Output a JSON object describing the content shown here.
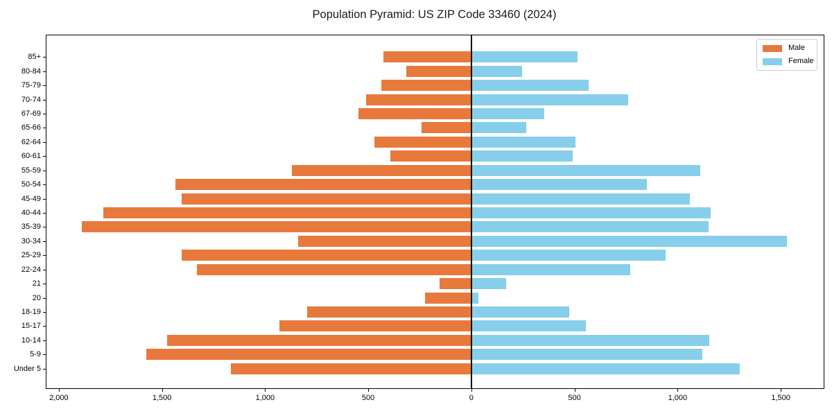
{
  "title": "Population Pyramid: US ZIP Code 33460 (2024)",
  "legend": {
    "male_label": "Male",
    "female_label": "Female",
    "position": "upper right"
  },
  "colors": {
    "male": "#e8793d",
    "female": "#87ceeb",
    "axis": "#000000",
    "legend_border": "#cccccc",
    "background": "#ffffff"
  },
  "chart_data": {
    "type": "bar",
    "subtype": "population-pyramid",
    "title": "Population Pyramid: US ZIP Code 33460 (2024)",
    "xlabel": "",
    "ylabel": "",
    "grid": false,
    "legend_position": "upper right",
    "categories": [
      "85+",
      "80-84",
      "75-79",
      "70-74",
      "67-69",
      "65-66",
      "62-64",
      "60-61",
      "55-59",
      "50-54",
      "45-49",
      "40-44",
      "35-39",
      "30-34",
      "25-29",
      "22-24",
      "21",
      "20",
      "18-19",
      "15-17",
      "10-14",
      "5-9",
      "Under 5"
    ],
    "series": [
      {
        "name": "Male",
        "side": "left",
        "color": "#e8793d",
        "values": [
          425,
          315,
          437,
          512,
          548,
          242,
          470,
          392,
          870,
          1435,
          1405,
          1785,
          1890,
          840,
          1405,
          1330,
          155,
          225,
          795,
          930,
          1475,
          1575,
          1165
        ]
      },
      {
        "name": "Female",
        "side": "right",
        "color": "#87ceeb",
        "values": [
          515,
          245,
          570,
          760,
          355,
          265,
          505,
          490,
          1110,
          850,
          1060,
          1160,
          1150,
          1530,
          940,
          770,
          170,
          35,
          475,
          555,
          1155,
          1120,
          1300
        ]
      }
    ],
    "xlim": [
      -2060,
      1708
    ],
    "x_ticks": [
      -2000,
      -1500,
      -1000,
      -500,
      0,
      500,
      1000,
      1500
    ],
    "x_tick_labels": [
      "2,000",
      "1,500",
      "1,000",
      "500",
      "0",
      "500",
      "1,000",
      "1,500"
    ]
  }
}
